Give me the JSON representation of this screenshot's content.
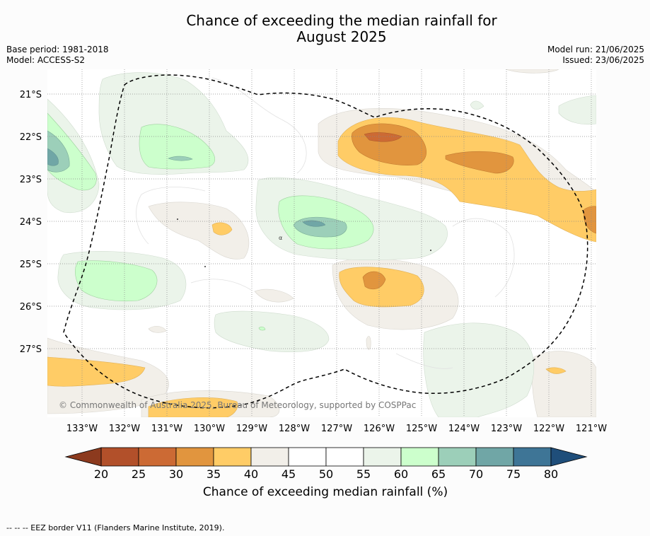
{
  "title_line1": "Chance of exceeding the median rainfall for",
  "title_line2": "August 2025",
  "base_period": "Base period: 1981-2018",
  "model": "Model: ACCESS-S2",
  "model_run": "Model run: 21/06/2025",
  "issued": "Issued: 23/06/2025",
  "copyright": "© Commonwealth of Australia 2025, Bureau of Meteorology, supported by COSPPac",
  "lat_labels": [
    "21°S",
    "22°S",
    "23°S",
    "24°S",
    "25°S",
    "26°S",
    "27°S"
  ],
  "lon_labels": [
    "133°W",
    "132°W",
    "131°W",
    "130°W",
    "129°W",
    "128°W",
    "127°W",
    "126°W",
    "125°W",
    "124°W",
    "123°W",
    "122°W",
    "121°W"
  ],
  "colorbar": {
    "title": "Chance of exceeding median rainfall (%)",
    "ticks": [
      "20",
      "25",
      "30",
      "35",
      "40",
      "45",
      "50",
      "55",
      "60",
      "65",
      "70",
      "75",
      "80"
    ],
    "colors": [
      "#b2502a",
      "#cc6a34",
      "#e1953e",
      "#ffcc66",
      "#f2efe9",
      "#ffffff",
      "#ffffff",
      "#ebf4ea",
      "#ccffcc",
      "#9ccfb9",
      "#70a6a6",
      "#3e7596"
    ],
    "under_color": "#8c3a1e",
    "over_color": "#1f4e7a"
  },
  "footnote": "--  --  -- EEZ border V11 (Flanders Marine Institute, 2019)."
}
